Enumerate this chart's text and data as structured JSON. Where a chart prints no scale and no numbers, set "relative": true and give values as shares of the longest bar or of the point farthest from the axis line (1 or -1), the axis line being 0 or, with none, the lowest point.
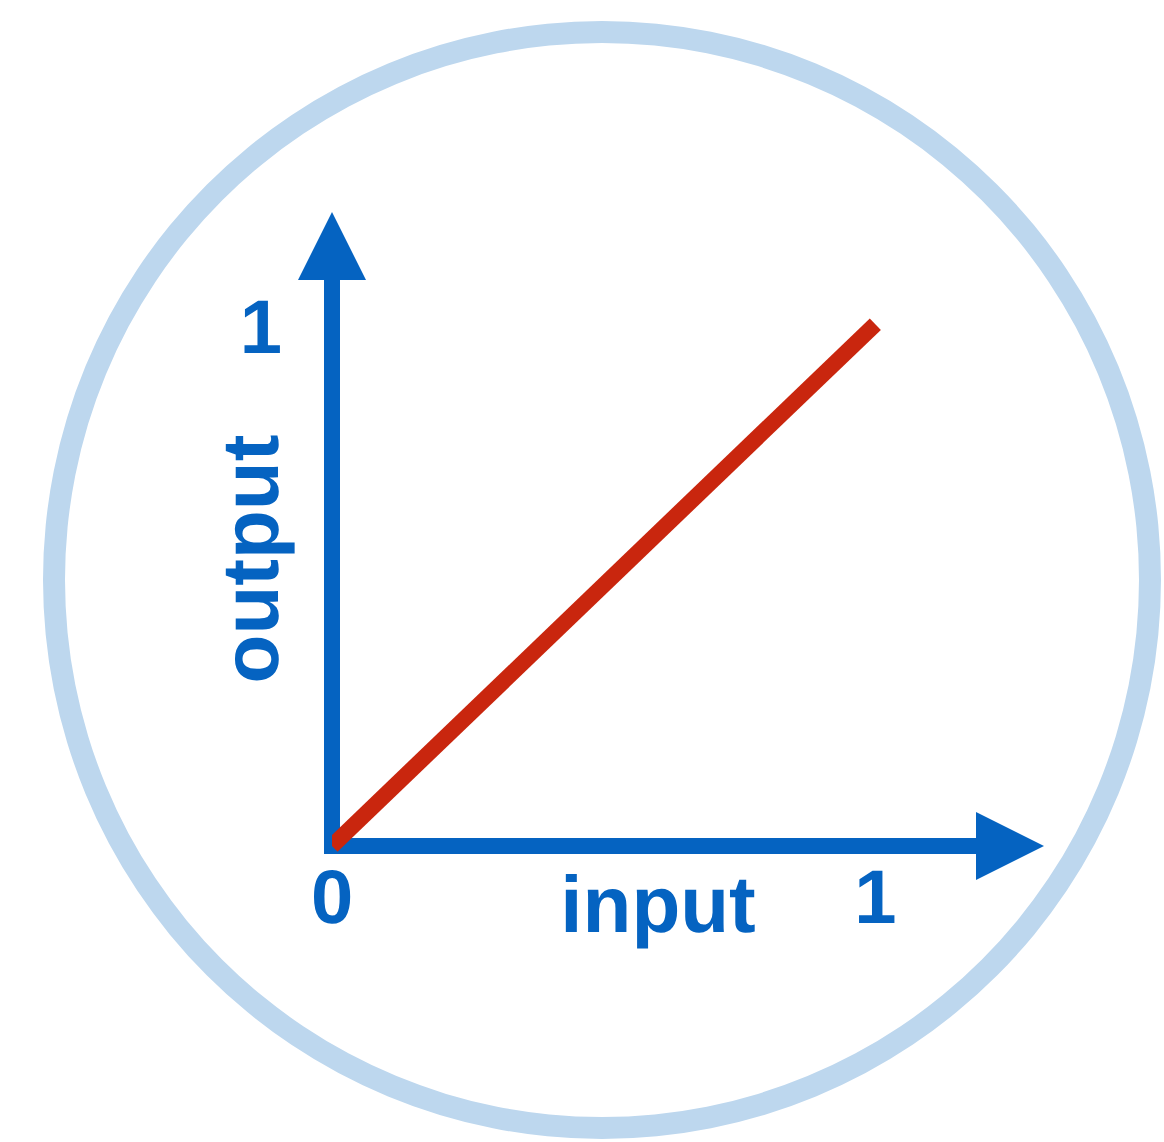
{
  "chart_data": {
    "type": "line",
    "xlabel": "input",
    "ylabel": "output",
    "x": [
      0,
      1
    ],
    "series": [
      {
        "color": "#c9260e",
        "values": [
          0,
          1
        ]
      }
    ],
    "relative": true,
    "xlim": [
      0,
      1.2
    ],
    "xticks": [
      0,
      1
    ],
    "annotations": [
      "1"
    ]
  }
}
